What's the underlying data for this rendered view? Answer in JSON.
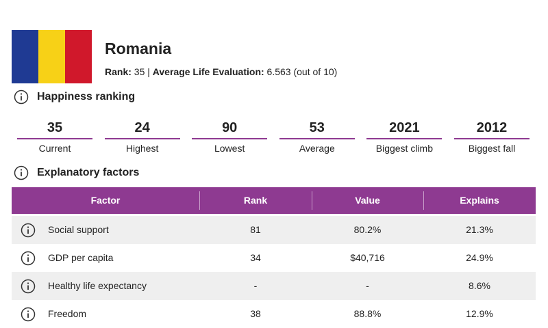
{
  "header": {
    "country": "Romania",
    "rank_label": "Rank:",
    "rank": "35",
    "separator": "|",
    "evaluation_label": "Average Life Evaluation:",
    "evaluation": "6.563",
    "evaluation_note": "(out of 10)"
  },
  "ranking": {
    "title": "Happiness ranking",
    "stats": [
      {
        "value": "35",
        "label": "Current"
      },
      {
        "value": "24",
        "label": "Highest"
      },
      {
        "value": "90",
        "label": "Lowest"
      },
      {
        "value": "53",
        "label": "Average"
      },
      {
        "value": "2021",
        "label": "Biggest climb"
      },
      {
        "value": "2012",
        "label": "Biggest fall"
      }
    ]
  },
  "factors": {
    "title": "Explanatory factors",
    "columns": [
      "Factor",
      "Rank",
      "Value",
      "Explains"
    ],
    "rows": [
      [
        "Social support",
        "81",
        "80.2%",
        "21.3%"
      ],
      [
        "GDP per capita",
        "34",
        "$40,716",
        "24.9%"
      ],
      [
        "Healthy life expectancy",
        "-",
        "-",
        "8.6%"
      ],
      [
        "Freedom",
        "38",
        "88.8%",
        "12.9%"
      ]
    ]
  }
}
